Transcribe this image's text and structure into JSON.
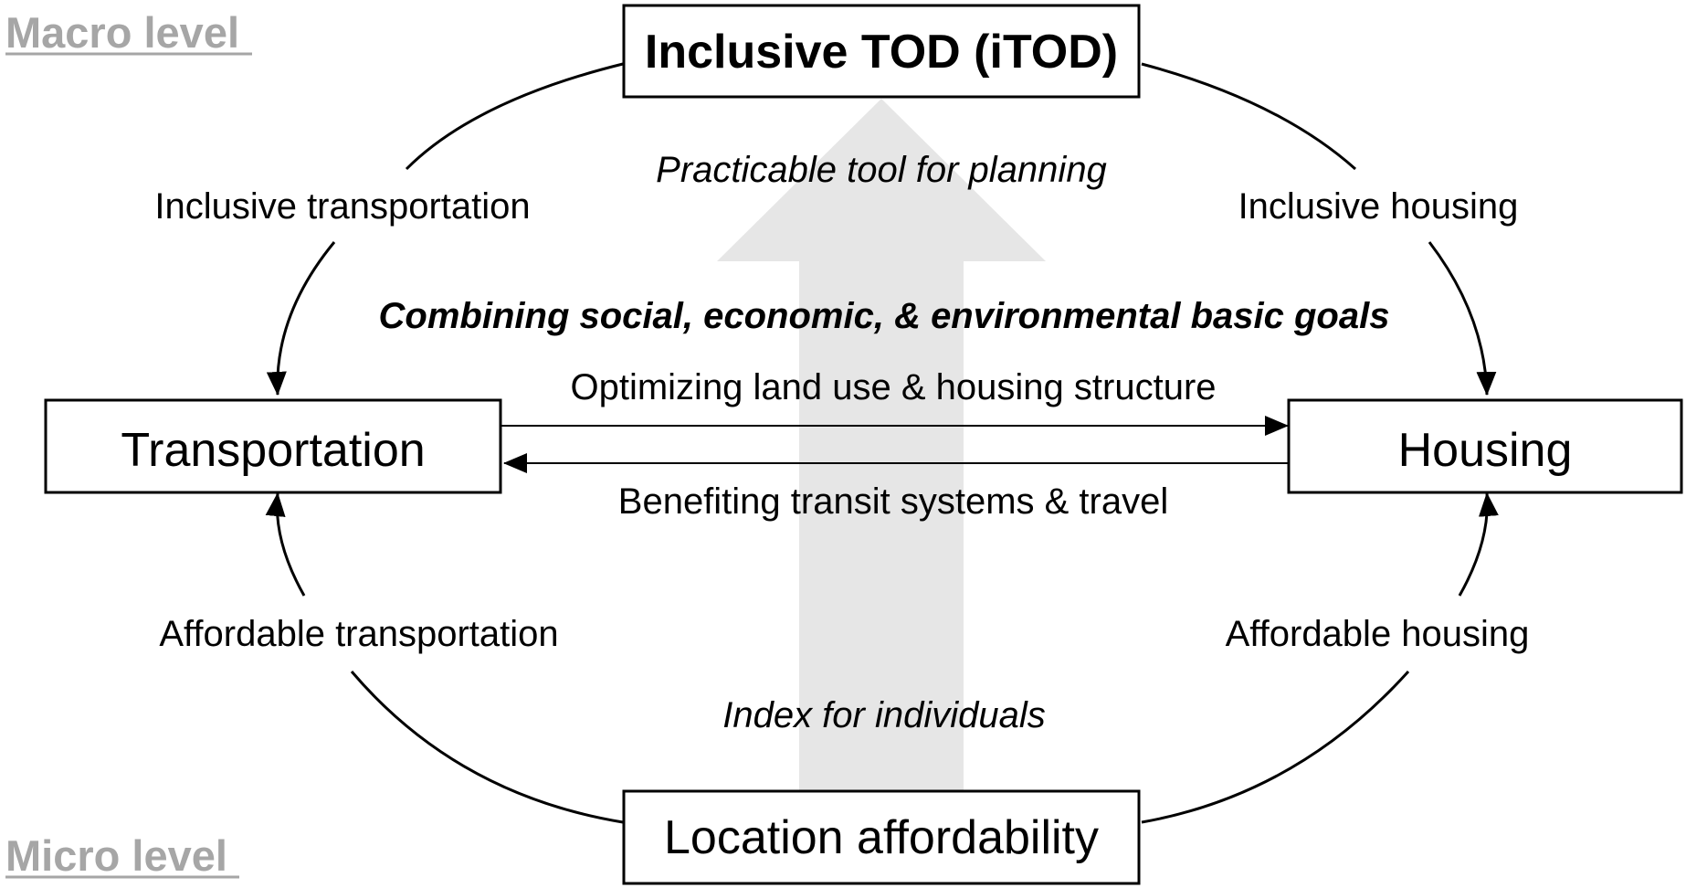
{
  "levels": {
    "macro": "Macro level",
    "micro": "Micro level"
  },
  "nodes": {
    "top": "Inclusive TOD (iTOD)",
    "left": "Transportation",
    "right": "Housing",
    "bottom": "Location affordability"
  },
  "edges": {
    "top_left": "Inclusive transportation",
    "top_right": "Inclusive housing",
    "bottom_left": "Affordable transportation",
    "bottom_right": "Affordable housing",
    "left_to_right": "Optimizing land use & housing structure",
    "right_to_left": "Benefiting transit systems & travel"
  },
  "center": {
    "top_italic": "Practicable tool for planning",
    "goals": "Combining social, economic, & environmental basic goals",
    "bottom_italic": "Index for individuals"
  },
  "colors": {
    "up_arrow": "#e6e6e6",
    "level_label": "#a6a6a6",
    "stroke": "#000000"
  }
}
